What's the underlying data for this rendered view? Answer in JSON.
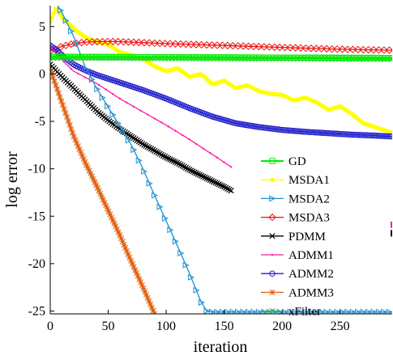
{
  "chart_data": {
    "type": "line",
    "title": "",
    "xlabel": "iteration",
    "ylabel": "log error",
    "xlim": [
      0,
      295
    ],
    "ylim": [
      -25.3,
      7.2
    ],
    "xticks": [
      0,
      50,
      100,
      150,
      200,
      250
    ],
    "yticks": [
      5,
      0,
      -5,
      -10,
      -15,
      -20,
      -25
    ],
    "grid": false,
    "legend_position": "right",
    "series": [
      {
        "name": "GD",
        "color": "#00ee00",
        "marker": "square",
        "x": [
          0,
          50,
          100,
          150,
          200,
          250,
          295
        ],
        "y": [
          1.8,
          1.78,
          1.76,
          1.74,
          1.72,
          1.7,
          1.68
        ]
      },
      {
        "name": "MSDA1",
        "color": "#ffff00",
        "marker": "circle-filled",
        "x": [
          0,
          5,
          10,
          20,
          30,
          40,
          50,
          60,
          70,
          80,
          90,
          100,
          110,
          120,
          130,
          140,
          150,
          160,
          170,
          180,
          190,
          200,
          210,
          220,
          230,
          240,
          250,
          260,
          270,
          280,
          290,
          295
        ],
        "y": [
          5.5,
          7.0,
          6.0,
          4.8,
          3.9,
          3.4,
          3.1,
          2.3,
          2.0,
          1.6,
          0.8,
          0.3,
          0.6,
          -0.3,
          0.0,
          -1.1,
          -0.7,
          -1.5,
          -1.2,
          -1.8,
          -2.1,
          -2.2,
          -2.8,
          -2.5,
          -3.0,
          -3.8,
          -3.4,
          -4.2,
          -5.2,
          -5.6,
          -6.0,
          -6.2
        ]
      },
      {
        "name": "MSDA2",
        "color": "#1f8fd0",
        "marker": "triangle-right",
        "x": [
          0,
          10,
          20,
          30,
          40,
          50,
          60,
          70,
          80,
          90,
          100,
          110,
          120,
          130,
          135,
          140,
          150,
          200,
          250,
          295
        ],
        "y": [
          8.5,
          6.5,
          4.0,
          0.8,
          -1.5,
          -3.5,
          -5.5,
          -7.5,
          -10.0,
          -12.8,
          -15.5,
          -18.2,
          -21.0,
          -24.0,
          -25.0,
          -25.1,
          -25.1,
          -25.1,
          -25.1,
          -25.1
        ]
      },
      {
        "name": "MSDA3",
        "color": "#ee1111",
        "marker": "diamond",
        "x": [
          0,
          10,
          20,
          30,
          40,
          50,
          60,
          70,
          80,
          90,
          100,
          150,
          200,
          250,
          295
        ],
        "y": [
          2.4,
          2.9,
          3.2,
          3.35,
          3.4,
          3.42,
          3.4,
          3.35,
          3.3,
          3.25,
          3.2,
          3.0,
          2.8,
          2.6,
          2.5
        ]
      },
      {
        "name": "PDMM",
        "color": "#000000",
        "marker": "x",
        "x": [
          0,
          10,
          20,
          30,
          40,
          50,
          60,
          70,
          80,
          90,
          100,
          110,
          120,
          130,
          140,
          150,
          156
        ],
        "y": [
          1.0,
          -0.3,
          -1.5,
          -2.7,
          -3.9,
          -4.9,
          -5.8,
          -6.6,
          -7.4,
          -8.1,
          -8.8,
          -9.4,
          -10.1,
          -10.7,
          -11.3,
          -11.9,
          -12.3
        ]
      },
      {
        "name": "ADMM1",
        "color": "#ff1aa8",
        "marker": "dot",
        "x": [
          0,
          10,
          20,
          40,
          60,
          80,
          100,
          120,
          140,
          156
        ],
        "y": [
          2.8,
          1.5,
          0.3,
          -1.0,
          -2.6,
          -4.0,
          -5.4,
          -6.9,
          -8.5,
          -9.8
        ]
      },
      {
        "name": "ADMM2",
        "color": "#2222cc",
        "marker": "circle",
        "x": [
          0,
          10,
          20,
          30,
          40,
          50,
          60,
          80,
          100,
          120,
          140,
          160,
          180,
          200,
          220,
          240,
          260,
          280,
          295
        ],
        "y": [
          3.0,
          2.0,
          1.0,
          0.4,
          -0.1,
          -0.5,
          -0.9,
          -1.7,
          -2.6,
          -3.6,
          -4.5,
          -5.2,
          -5.6,
          -5.9,
          -6.1,
          -6.25,
          -6.4,
          -6.5,
          -6.6
        ]
      },
      {
        "name": "ADMM3",
        "color": "#e06010",
        "marker": "star",
        "x": [
          0,
          10,
          20,
          30,
          40,
          50,
          60,
          70,
          80,
          90
        ],
        "y": [
          0.5,
          -3.0,
          -6.5,
          -9.3,
          -11.8,
          -14.4,
          -17.0,
          -19.8,
          -22.5,
          -25.3
        ]
      },
      {
        "name": "xFilter",
        "color": "#44bb44",
        "marker": "x",
        "x": [
          0,
          50,
          100,
          150,
          200,
          250,
          295
        ],
        "y": [
          1.7,
          1.68,
          1.66,
          1.64,
          1.62,
          1.6,
          1.58
        ]
      }
    ],
    "extra_marks": [
      {
        "color": "#ff1aa8",
        "x": 295,
        "y": -15.9
      },
      {
        "color": "#000000",
        "x": 295,
        "y": -16.8
      }
    ]
  }
}
